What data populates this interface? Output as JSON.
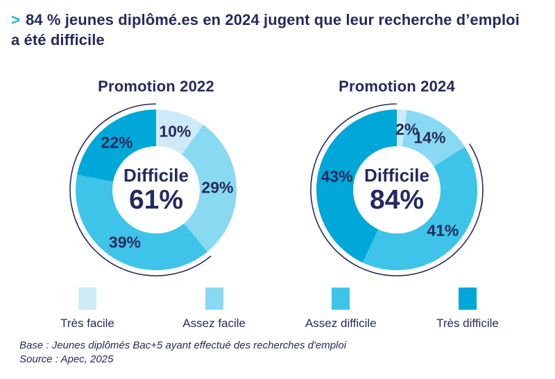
{
  "title": {
    "marker": ">",
    "line1": "84 % jeunes diplômé.es en 2024 jugent que leur recherche d’emploi",
    "line2": "a été difficile"
  },
  "colors": {
    "navy": "#252a5e",
    "accent": "#19addf",
    "tres_facile": "#cfeaf7",
    "assez_facile": "#89d9f3",
    "assez_difficile": "#3ec4e8",
    "tres_difficile": "#00a7d9"
  },
  "legend": [
    {
      "label": "Très facile",
      "color": "tres_facile"
    },
    {
      "label": "Assez facile",
      "color": "assez_facile"
    },
    {
      "label": "Assez difficile",
      "color": "assez_difficile"
    },
    {
      "label": "Très difficile",
      "color": "tres_difficile"
    }
  ],
  "chart_data": [
    {
      "type": "pie",
      "donut": true,
      "title": "Promotion 2022",
      "center_label": "Difficile",
      "center_value": "61%",
      "start_angle_deg": 0,
      "direction": "clockwise",
      "segments": [
        {
          "label": "Très facile",
          "value": 10,
          "color": "tres_facile"
        },
        {
          "label": "Assez facile",
          "value": 29,
          "color": "assez_facile"
        },
        {
          "label": "Assez difficile",
          "value": 39,
          "color": "assez_difficile"
        },
        {
          "label": "Très difficile",
          "value": 22,
          "color": "tres_difficile"
        }
      ],
      "highlight_arc": {
        "covers": [
          "Assez difficile",
          "Très difficile"
        ],
        "total_percent": 61
      }
    },
    {
      "type": "pie",
      "donut": true,
      "title": "Promotion 2024",
      "center_label": "Difficile",
      "center_value": "84%",
      "start_angle_deg": 0,
      "direction": "clockwise",
      "segments": [
        {
          "label": "Très facile",
          "value": 2,
          "color": "tres_facile"
        },
        {
          "label": "Assez facile",
          "value": 14,
          "color": "assez_facile"
        },
        {
          "label": "Assez difficile",
          "value": 41,
          "color": "assez_difficile"
        },
        {
          "label": "Très difficile",
          "value": 43,
          "color": "tres_difficile"
        }
      ],
      "highlight_arc": {
        "covers": [
          "Assez difficile",
          "Très difficile"
        ],
        "total_percent": 84
      }
    }
  ],
  "footer": {
    "base": "Base : Jeunes diplômés Bac+5 ayant effectué des recherches d'emploi",
    "source": "Source : Apec, 2025"
  }
}
